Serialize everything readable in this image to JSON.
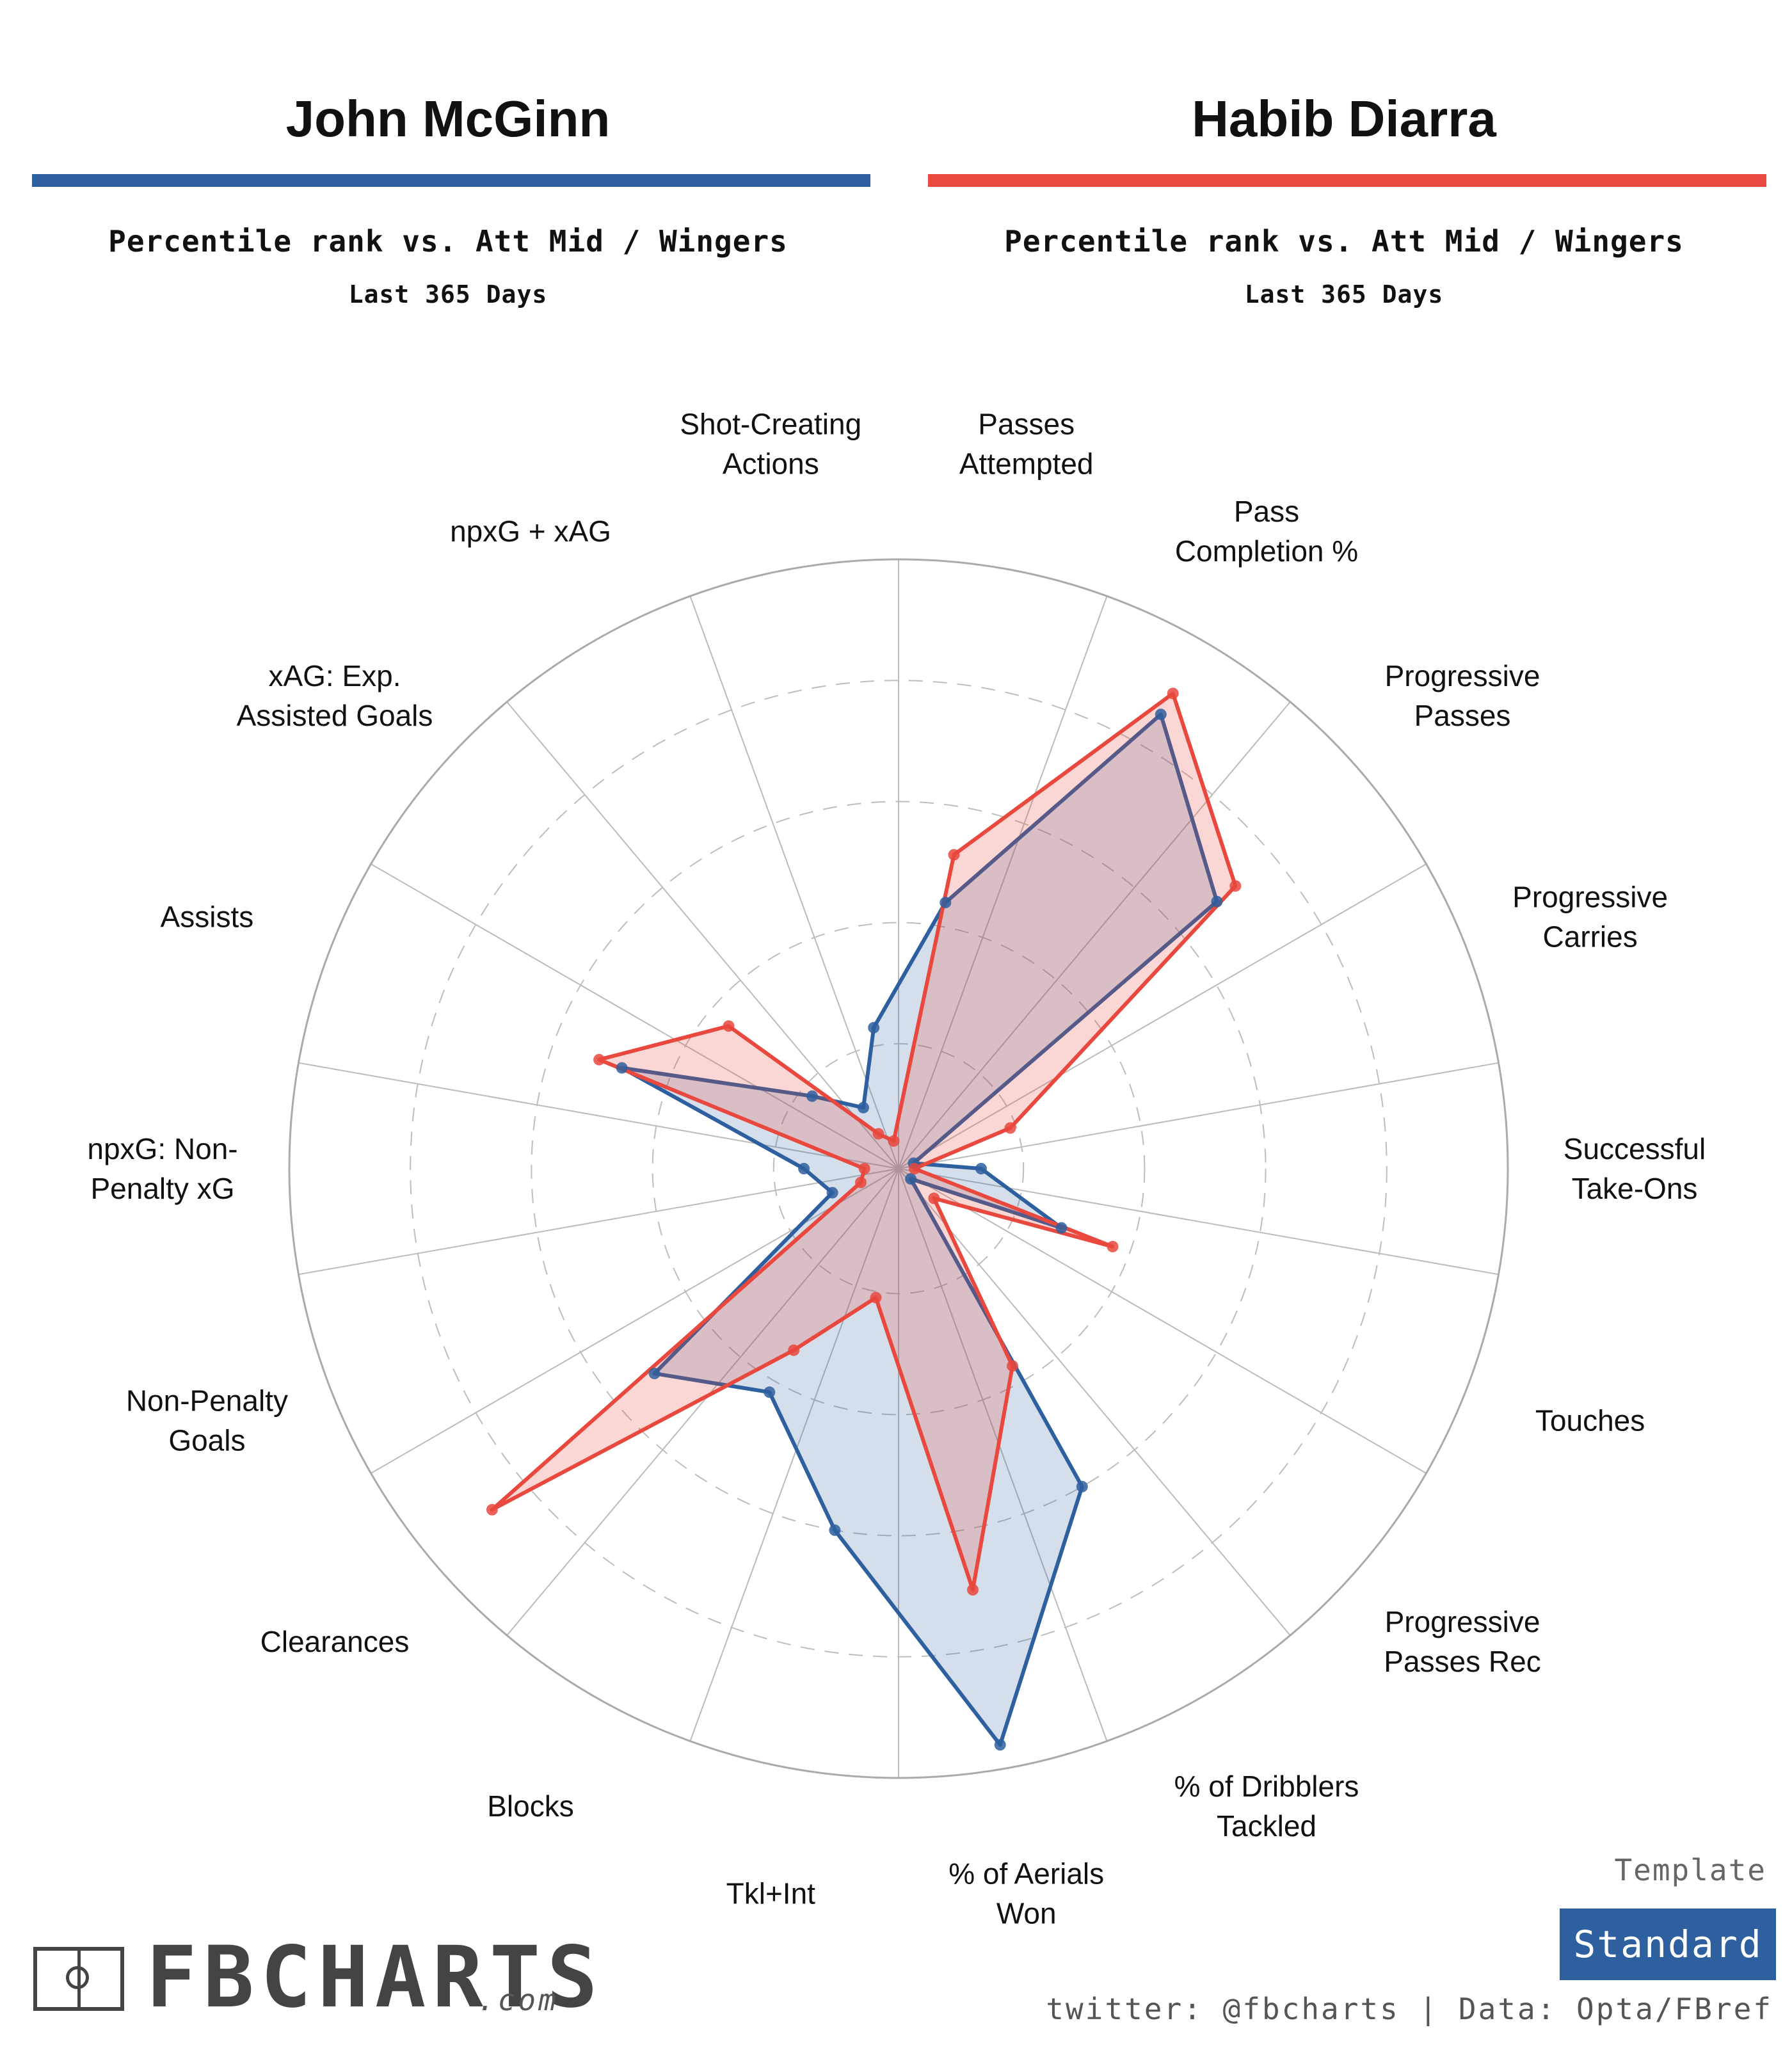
{
  "players": [
    {
      "name": "John McGinn",
      "subtitle": "Percentile rank vs. Att Mid / Wingers",
      "period": "Last 365 Days",
      "color": "#2e5f9e"
    },
    {
      "name": "Habib Diarra",
      "subtitle": "Percentile rank vs. Att Mid / Wingers",
      "period": "Last 365 Days",
      "color": "#e8483d"
    }
  ],
  "chart_data": {
    "type": "radar",
    "title": "",
    "scale": [
      0,
      100
    ],
    "gridlines": [
      20,
      40,
      60,
      80,
      100
    ],
    "categories": [
      "Passes Attempted",
      "Pass Completion %",
      "Progressive Passes",
      "Progressive Carries",
      "Successful Take-Ons",
      "Touches",
      "Progressive Passes Rec",
      "% of Dribblers Tackled",
      "% of Aerials Won",
      "Tkl+Int",
      "Blocks",
      "Clearances",
      "Non-Penalty Goals",
      "npxG: Non-Penalty xG",
      "Assists",
      "xAG: Exp. Assisted Goals",
      "npxG + xAG",
      "Shot-Creating Actions"
    ],
    "series": [
      {
        "name": "John McGinn",
        "values": [
          44,
          86,
          68,
          2,
          13,
          28,
          2,
          60,
          96,
          60,
          42,
          52,
          11,
          15,
          48,
          18,
          11,
          23
        ]
      },
      {
        "name": "Habib Diarra",
        "values": [
          52,
          90,
          72,
          19,
          2,
          37,
          7,
          37,
          70,
          21,
          34,
          87,
          6,
          5,
          52,
          36,
          6,
          4
        ]
      }
    ]
  },
  "labels": [
    "Passes\nAttempted",
    "Pass\nCompletion %",
    "Progressive\nPasses",
    "Progressive\nCarries",
    "Successful\nTake-Ons",
    "Touches",
    "Progressive\nPasses Rec",
    "% of Dribblers\nTackled",
    "% of Aerials\nWon",
    "Tkl+Int",
    "Blocks",
    "Clearances",
    "Non-Penalty\nGoals",
    "npxG: Non-\nPenalty xG",
    "Assists",
    "xAG: Exp.\nAssisted Goals",
    "npxG + xAG",
    "Shot-Creating\nActions"
  ],
  "footer": {
    "template_label": "Template",
    "template_value": "Standard",
    "credit": "twitter: @fbcharts | Data: Opta/FBref",
    "logo_text": "FBCHARTS",
    "logo_suffix": ".com"
  }
}
